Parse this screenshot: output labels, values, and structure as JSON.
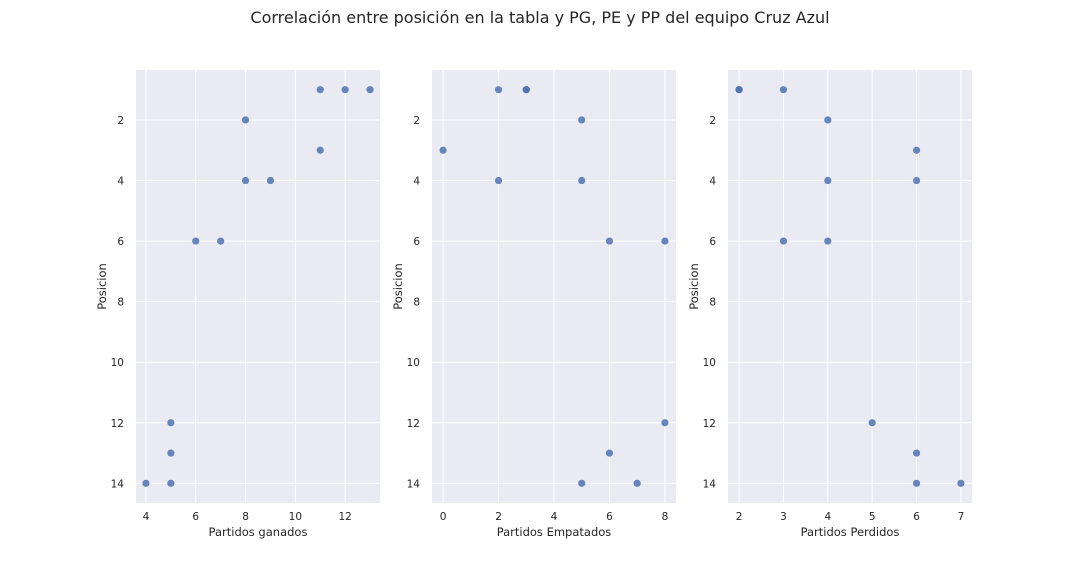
{
  "title": "Correlación entre posición en la tabla y PG, PE y PP del equipo Cruz Azul",
  "chart_data": [
    {
      "type": "scatter",
      "xlabel": "Partidos ganados",
      "ylabel": "Posicion",
      "xlim": [
        3.6,
        13.4
      ],
      "ylim": [
        14.65,
        0.35
      ],
      "y_inverted": true,
      "xticks": [
        4,
        6,
        8,
        10,
        12
      ],
      "yticks": [
        2,
        4,
        6,
        8,
        10,
        12,
        14
      ],
      "grid": true,
      "x": [
        11,
        12,
        13,
        8,
        11,
        8,
        9,
        6,
        7,
        5,
        5,
        4,
        5
      ],
      "y": [
        1,
        1,
        1,
        2,
        3,
        4,
        4,
        6,
        6,
        12,
        13,
        14,
        14
      ]
    },
    {
      "type": "scatter",
      "xlabel": "Partidos Empatados",
      "ylabel": "Posicion",
      "xlim": [
        -0.4,
        8.4
      ],
      "ylim": [
        14.65,
        0.35
      ],
      "y_inverted": true,
      "xticks": [
        0,
        2,
        4,
        6,
        8
      ],
      "yticks": [
        2,
        4,
        6,
        8,
        10,
        12,
        14
      ],
      "grid": true,
      "x": [
        2,
        3,
        3,
        5,
        0,
        2,
        5,
        6,
        8,
        8,
        6,
        5,
        7
      ],
      "y": [
        1,
        1,
        1,
        2,
        3,
        4,
        4,
        6,
        6,
        12,
        13,
        14,
        14
      ]
    },
    {
      "type": "scatter",
      "xlabel": "Partidos Perdidos",
      "ylabel": "Posicion",
      "xlim": [
        1.75,
        7.25
      ],
      "ylim": [
        14.65,
        0.35
      ],
      "y_inverted": true,
      "xticks": [
        2,
        3,
        4,
        5,
        6,
        7
      ],
      "yticks": [
        2,
        4,
        6,
        8,
        10,
        12,
        14
      ],
      "grid": true,
      "x": [
        2,
        2,
        3,
        4,
        6,
        4,
        6,
        3,
        4,
        5,
        6,
        6,
        7
      ],
      "y": [
        1,
        1,
        1,
        2,
        3,
        4,
        4,
        6,
        6,
        12,
        13,
        14,
        14
      ]
    }
  ],
  "colors": {
    "background": "#eaeaf2",
    "grid": "#ffffff",
    "point": "#4c72b0",
    "text": "#262626"
  }
}
